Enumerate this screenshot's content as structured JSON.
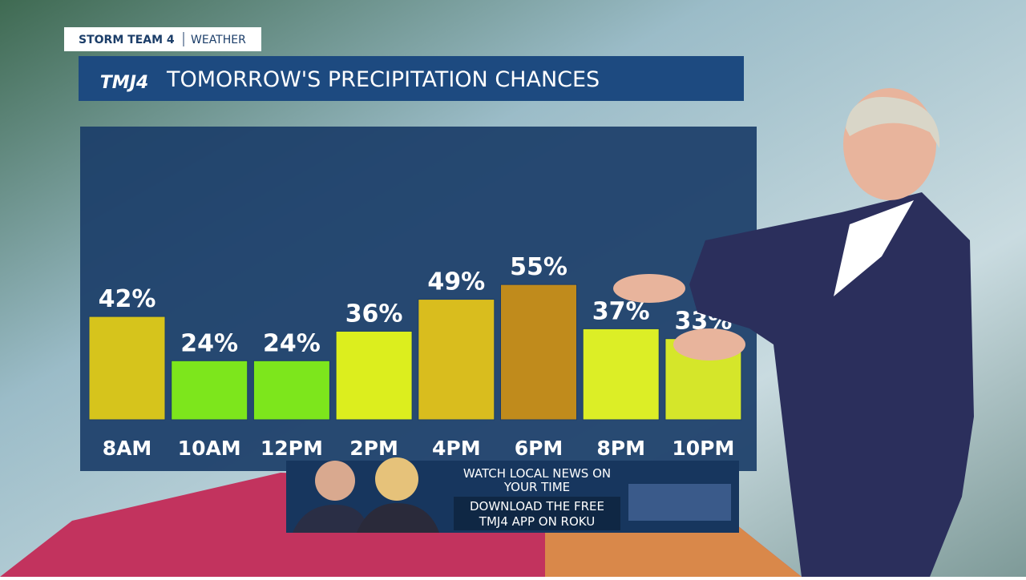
{
  "bug": {
    "left": "STORM TEAM 4",
    "right": "WEATHER"
  },
  "logo": "TMJ4",
  "chart_data": {
    "type": "bar",
    "title": "TOMORROW'S PRECIPITATION CHANCES",
    "categories": [
      "8AM",
      "10AM",
      "12PM",
      "2PM",
      "4PM",
      "6PM",
      "8PM",
      "10PM"
    ],
    "values": [
      42,
      24,
      24,
      36,
      49,
      55,
      37,
      33
    ],
    "value_labels": [
      "42%",
      "24%",
      "24%",
      "36%",
      "49%",
      "55%",
      "37%",
      "33%"
    ],
    "colors": [
      "#d6c41c",
      "#7de61c",
      "#7de61c",
      "#dcee1e",
      "#d9bd1e",
      "#c08b1c",
      "#dcee26",
      "#d5e62a"
    ],
    "ylim": [
      0,
      100
    ]
  },
  "promo": {
    "line1": "WATCH LOCAL NEWS ON",
    "line2": "YOUR TIME",
    "line3": "DOWNLOAD THE FREE",
    "line4": "TMJ4 APP ON ROKU"
  }
}
